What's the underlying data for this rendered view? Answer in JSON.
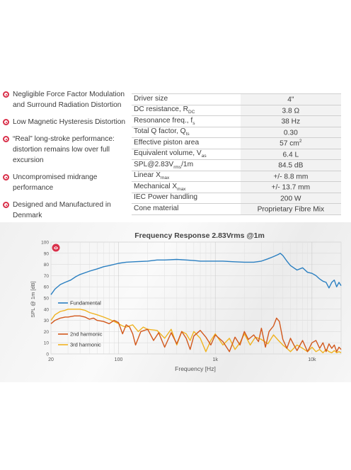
{
  "features": [
    {
      "text": "Negligible Force Factor Modulation and Surround Radiation Distortion"
    },
    {
      "text": "Low Magnetic Hysteresis Distortion"
    },
    {
      "text": "“Real” long-stroke performance: distortion remains low over full excursion"
    },
    {
      "text": "Uncompromised midrange performance"
    },
    {
      "text": "Designed and Manufactured in Denmark"
    }
  ],
  "specs": [
    {
      "label": "Driver size",
      "label_sub": "",
      "label_tail": "",
      "value": "4\"",
      "value_sup": ""
    },
    {
      "label": "DC resistance, R",
      "label_sub": "DC",
      "label_tail": "",
      "value": "3.8 Ω",
      "value_sup": ""
    },
    {
      "label": "Resonance freq., f",
      "label_sub": "s",
      "label_tail": "",
      "value": "38 Hz",
      "value_sup": ""
    },
    {
      "label": "Total Q factor, Q",
      "label_sub": "ts",
      "label_tail": "",
      "value": "0.30",
      "value_sup": ""
    },
    {
      "label": "Effective piston area",
      "label_sub": "",
      "label_tail": "",
      "value": "57 cm",
      "value_sup": "2"
    },
    {
      "label": "Equivalent volume, V",
      "label_sub": "as",
      "label_tail": "",
      "value": "6.4 L",
      "value_sup": ""
    },
    {
      "label": "SPL@2.83V",
      "label_sub": "rms",
      "label_tail": "/1m",
      "value": "84.5 dB",
      "value_sup": ""
    },
    {
      "label": "Linear X",
      "label_sub": "max",
      "label_tail": "",
      "value": "+/- 8.8 mm",
      "value_sup": ""
    },
    {
      "label": "Mechanical X",
      "label_sub": "max",
      "label_tail": "",
      "value": "+/- 13.7 mm",
      "value_sup": ""
    },
    {
      "label": "IEC Power handling",
      "label_sub": "",
      "label_tail": "",
      "value": "200 W",
      "value_sup": ""
    },
    {
      "label": "Cone material",
      "label_sub": "",
      "label_tail": "",
      "value": "Proprietary Fibre Mix",
      "value_sup": ""
    }
  ],
  "chart_data": {
    "type": "line",
    "title": "Frequency Response 2.83Vrms @1m",
    "xlabel": "Frequency [Hz]",
    "ylabel": "SPL @ 1m [dB]",
    "x_scale": "log",
    "xlim": [
      20,
      20000
    ],
    "ylim": [
      0,
      100
    ],
    "x_tick_labels": [
      "20",
      "100",
      "1k",
      "10k"
    ],
    "x_tick_values": [
      20,
      100,
      1000,
      10000
    ],
    "y_ticks": [
      0,
      10,
      20,
      30,
      40,
      50,
      60,
      70,
      80,
      90,
      100
    ],
    "grid": true,
    "legend_position": "bottom-left",
    "series": [
      {
        "name": "Fundamental",
        "color": "#2a7fc1",
        "x": [
          20,
          22,
          25,
          28,
          32,
          36,
          40,
          50,
          60,
          70,
          80,
          100,
          120,
          150,
          200,
          250,
          300,
          400,
          500,
          600,
          700,
          800,
          1000,
          1200,
          1500,
          2000,
          2500,
          3000,
          3500,
          4000,
          4500,
          4700,
          5000,
          5500,
          6000,
          7000,
          8000,
          9000,
          10000,
          11000,
          12000,
          13000,
          14000,
          15000,
          16000,
          17000,
          18000,
          19000,
          20000
        ],
        "y": [
          53,
          58,
          62,
          64,
          66,
          69,
          71,
          74,
          76,
          78,
          79,
          81,
          82,
          82.5,
          83,
          84,
          84,
          84.5,
          84,
          83.5,
          83,
          83,
          83,
          83,
          82.5,
          82,
          82,
          83,
          85,
          87,
          89,
          90,
          88,
          83,
          79,
          75,
          77,
          73,
          72,
          70,
          67,
          65,
          64,
          59,
          64,
          66,
          60,
          64,
          61
        ]
      },
      {
        "name": "2nd harmonic",
        "color": "#d2581c",
        "x": [
          20,
          22,
          25,
          28,
          30,
          35,
          40,
          45,
          50,
          55,
          60,
          70,
          80,
          90,
          100,
          110,
          120,
          130,
          140,
          150,
          170,
          200,
          230,
          260,
          300,
          350,
          400,
          450,
          500,
          550,
          600,
          700,
          800,
          900,
          1000,
          1200,
          1400,
          1600,
          1800,
          2000,
          2200,
          2500,
          2800,
          3000,
          3300,
          3600,
          4000,
          4300,
          4600,
          5000,
          5500,
          6000,
          6500,
          7000,
          8000,
          9000,
          10000,
          11000,
          12000,
          13000,
          14000,
          15000,
          16000,
          17000,
          18000,
          19000,
          20000
        ],
        "y": [
          27,
          30,
          32,
          33,
          33,
          34,
          34,
          33,
          31,
          32,
          30,
          29,
          27,
          30,
          28,
          18,
          26,
          24,
          18,
          8,
          20,
          22,
          12,
          19,
          6,
          19,
          9,
          20,
          14,
          4,
          16,
          21,
          15,
          8,
          17,
          11,
          2,
          15,
          8,
          20,
          13,
          17,
          11,
          23,
          6,
          20,
          25,
          32,
          29,
          13,
          5,
          14,
          8,
          3,
          12,
          2,
          10,
          12,
          5,
          10,
          2,
          9,
          5,
          8,
          2,
          6,
          4
        ]
      },
      {
        "name": "3rd harmonic",
        "color": "#f0b321",
        "x": [
          20,
          22,
          25,
          28,
          30,
          35,
          40,
          45,
          50,
          60,
          70,
          80,
          90,
          100,
          110,
          120,
          140,
          160,
          180,
          200,
          250,
          300,
          350,
          400,
          450,
          500,
          550,
          600,
          700,
          800,
          900,
          1000,
          1200,
          1400,
          1600,
          1800,
          2000,
          2300,
          2600,
          3000,
          3500,
          4000,
          4500,
          5000,
          5500,
          6000,
          7000,
          8000,
          9000,
          10000,
          11000,
          12000,
          13000,
          14000,
          15000,
          16000,
          17000,
          18000,
          19000,
          20000
        ],
        "y": [
          30,
          35,
          38,
          39,
          40,
          40,
          40,
          39,
          37,
          35,
          33,
          31,
          29,
          27,
          25,
          24,
          26,
          20,
          24,
          22,
          21,
          14,
          22,
          8,
          20,
          18,
          12,
          20,
          14,
          2,
          12,
          18,
          8,
          14,
          4,
          10,
          18,
          8,
          15,
          13,
          9,
          17,
          12,
          8,
          5,
          2,
          8,
          5,
          2,
          6,
          2,
          4,
          1,
          4,
          2,
          1,
          3,
          1,
          2,
          1
        ]
      }
    ]
  }
}
